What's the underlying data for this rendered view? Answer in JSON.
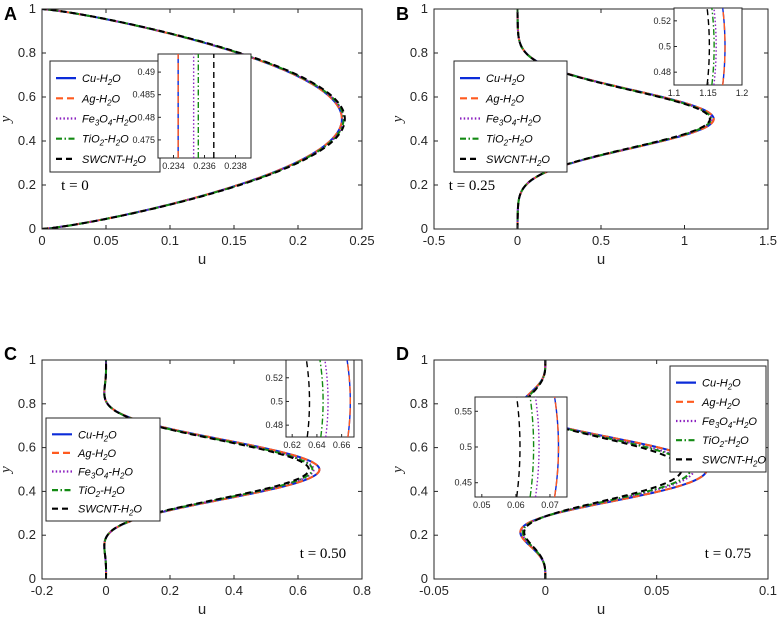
{
  "figure": {
    "colors": {
      "Cu-H2O": "#0b2bd9",
      "Ag-H2O": "#ff5a1f",
      "Fe3O4-H2O": "#8a1fbf",
      "TiO2-H2O": "#138a13",
      "SWCNT-H2O": "#000000"
    }
  },
  "chart_data": [
    {
      "panel_label": "A",
      "type": "line",
      "annotation": "t = 0",
      "xlabel": "u",
      "ylabel": "y",
      "xlim": [
        0,
        0.25
      ],
      "ylim": [
        0,
        1
      ],
      "xticks": [
        "0",
        "0.05",
        "0.1",
        "0.15",
        "0.2",
        "0.25"
      ],
      "yticks": [
        "0",
        "0.2",
        "0.4",
        "0.6",
        "0.8",
        "1"
      ],
      "legend_position": "left",
      "series": [
        {
          "name": "Cu-H2O",
          "peak_u": 0.2343
        },
        {
          "name": "Ag-H2O",
          "peak_u": 0.2343
        },
        {
          "name": "Fe3O4-H2O",
          "peak_u": 0.2353
        },
        {
          "name": "TiO2-H2O",
          "peak_u": 0.2356
        },
        {
          "name": "SWCNT-H2O",
          "peak_u": 0.2366
        }
      ],
      "inset": {
        "xlim": [
          0.233,
          0.239
        ],
        "ylim": [
          0.471,
          0.494
        ],
        "xticks": [
          "0.234",
          "0.236",
          "0.238"
        ],
        "yticks": [
          "0.475",
          "0.48",
          "0.485",
          "0.49"
        ]
      }
    },
    {
      "panel_label": "B",
      "type": "line",
      "annotation": "t = 0.25",
      "xlabel": "u",
      "ylabel": "y",
      "xlim": [
        -0.5,
        1.5
      ],
      "ylim": [
        0,
        1
      ],
      "xticks": [
        "-0.5",
        "0",
        "0.5",
        "1",
        "1.5"
      ],
      "yticks": [
        "0",
        "0.2",
        "0.4",
        "0.6",
        "0.8",
        "1"
      ],
      "legend_position": "left",
      "series": [
        {
          "name": "Cu-H2O",
          "peak_u": 1.175
        },
        {
          "name": "Ag-H2O",
          "peak_u": 1.175
        },
        {
          "name": "Fe3O4-H2O",
          "peak_u": 1.162
        },
        {
          "name": "TiO2-H2O",
          "peak_u": 1.159
        },
        {
          "name": "SWCNT-H2O",
          "peak_u": 1.152
        }
      ],
      "inset": {
        "xlim": [
          1.1,
          1.2
        ],
        "ylim": [
          0.47,
          0.53
        ],
        "xticks": [
          "1.1",
          "1.15",
          "1.2"
        ],
        "yticks": [
          "0.48",
          "0.5",
          "0.52"
        ]
      }
    },
    {
      "panel_label": "C",
      "type": "line",
      "annotation": "t = 0.50",
      "xlabel": "u",
      "ylabel": "y",
      "xlim": [
        -0.2,
        0.8
      ],
      "ylim": [
        0,
        1
      ],
      "xticks": [
        "-0.2",
        "0",
        "0.2",
        "0.4",
        "0.6",
        "0.8"
      ],
      "yticks": [
        "0",
        "0.2",
        "0.4",
        "0.6",
        "0.8",
        "1"
      ],
      "legend_position": "left",
      "series": [
        {
          "name": "Cu-H2O",
          "peak_u": 0.667
        },
        {
          "name": "Ag-H2O",
          "peak_u": 0.667
        },
        {
          "name": "Fe3O4-H2O",
          "peak_u": 0.649
        },
        {
          "name": "TiO2-H2O",
          "peak_u": 0.645
        },
        {
          "name": "SWCNT-H2O",
          "peak_u": 0.634
        }
      ],
      "inset": {
        "xlim": [
          0.615,
          0.67
        ],
        "ylim": [
          0.47,
          0.535
        ],
        "xticks": [
          "0.62",
          "0.64",
          "0.66"
        ],
        "yticks": [
          "0.48",
          "0.5",
          "0.52"
        ]
      }
    },
    {
      "panel_label": "D",
      "type": "line",
      "annotation": "t = 0.75",
      "xlabel": "u",
      "ylabel": "y",
      "xlim": [
        -0.05,
        0.1
      ],
      "ylim": [
        0,
        1
      ],
      "xticks": [
        "-0.05",
        "0",
        "0.05",
        "0.1"
      ],
      "yticks": [
        "0",
        "0.2",
        "0.4",
        "0.6",
        "0.8",
        "1"
      ],
      "legend_position": "top-right",
      "series": [
        {
          "name": "Cu-H2O",
          "peak_u": 0.0725
        },
        {
          "name": "Ag-H2O",
          "peak_u": 0.0725
        },
        {
          "name": "Fe3O4-H2O",
          "peak_u": 0.0668
        },
        {
          "name": "TiO2-H2O",
          "peak_u": 0.0652
        },
        {
          "name": "SWCNT-H2O",
          "peak_u": 0.0612
        }
      ],
      "inset": {
        "xlim": [
          0.048,
          0.075
        ],
        "ylim": [
          0.43,
          0.57
        ],
        "xticks": [
          "0.05",
          "0.06",
          "0.07"
        ],
        "yticks": [
          "0.45",
          "0.5",
          "0.55"
        ]
      }
    }
  ]
}
